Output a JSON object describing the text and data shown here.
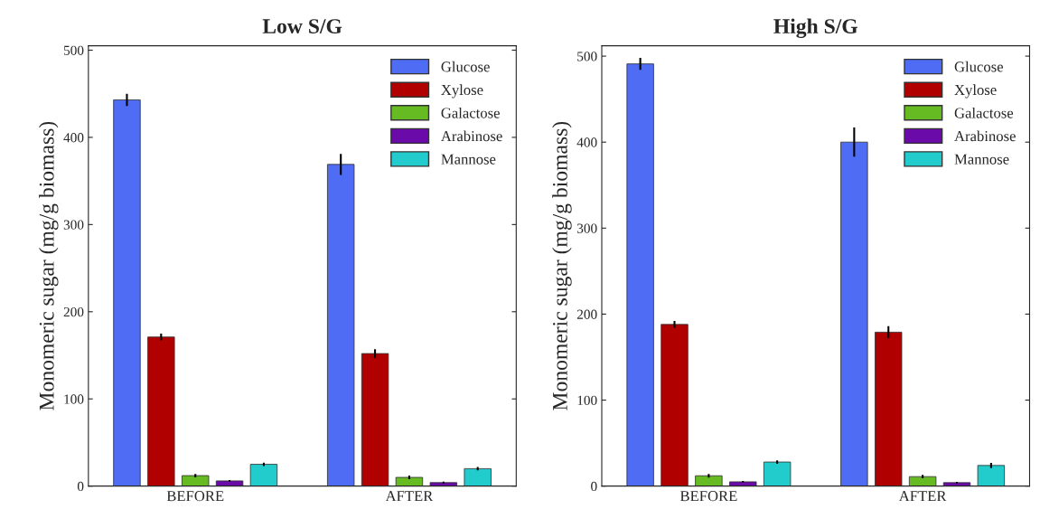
{
  "chart_data": [
    {
      "type": "bar",
      "title": "Low S/G",
      "ylabel": "Monomeric sugar (mg/g biomass)",
      "categories": [
        "BEFORE",
        "AFTER"
      ],
      "ylim": [
        0,
        505
      ],
      "yticks": [
        0,
        100,
        200,
        300,
        400,
        500
      ],
      "legend": "top right",
      "grid": false,
      "series": [
        {
          "name": "Glucose",
          "color": "#4f6cf4",
          "values": [
            443,
            369
          ],
          "errors": [
            7,
            12
          ]
        },
        {
          "name": "Xylose",
          "color": "#b00000",
          "values": [
            171,
            152
          ],
          "errors": [
            4,
            5
          ]
        },
        {
          "name": "Galactose",
          "color": "#66bb22",
          "values": [
            12,
            10
          ],
          "errors": [
            2,
            2
          ]
        },
        {
          "name": "Arabinose",
          "color": "#6a0aa8",
          "values": [
            6,
            4
          ],
          "errors": [
            1,
            1
          ]
        },
        {
          "name": "Mannose",
          "color": "#22cccc",
          "values": [
            25,
            20
          ],
          "errors": [
            2,
            2
          ]
        }
      ]
    },
    {
      "type": "bar",
      "title": "High S/G",
      "ylabel": "Monomeric sugar (mg/g biomass)",
      "categories": [
        "BEFORE",
        "AFTER"
      ],
      "ylim": [
        0,
        512
      ],
      "yticks": [
        0,
        100,
        200,
        300,
        400,
        500
      ],
      "legend": "top right",
      "grid": false,
      "series": [
        {
          "name": "Glucose",
          "color": "#4f6cf4",
          "values": [
            491,
            400
          ],
          "errors": [
            7,
            17
          ]
        },
        {
          "name": "Xylose",
          "color": "#b00000",
          "values": [
            188,
            179
          ],
          "errors": [
            4,
            7
          ]
        },
        {
          "name": "Galactose",
          "color": "#66bb22",
          "values": [
            12,
            11
          ],
          "errors": [
            2,
            2
          ]
        },
        {
          "name": "Arabinose",
          "color": "#6a0aa8",
          "values": [
            5,
            4
          ],
          "errors": [
            1,
            1
          ]
        },
        {
          "name": "Mannose",
          "color": "#22cccc",
          "values": [
            28,
            24
          ],
          "errors": [
            2,
            3
          ]
        }
      ]
    }
  ]
}
